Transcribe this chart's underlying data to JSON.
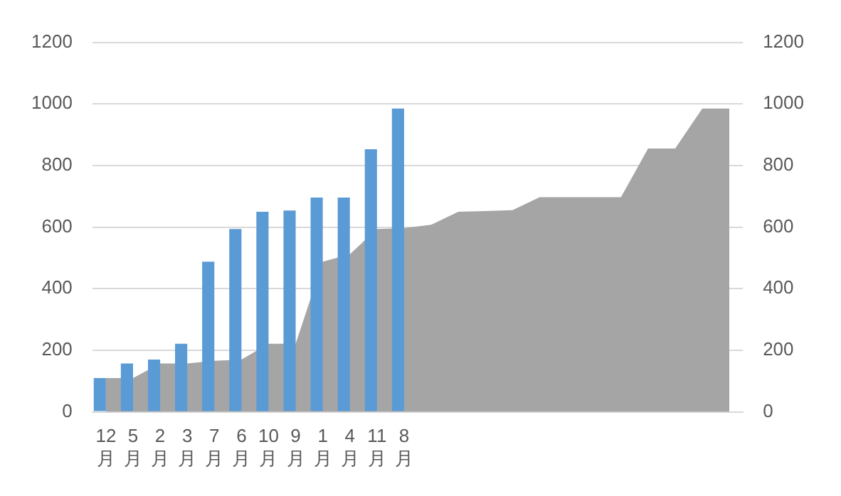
{
  "chart_data": {
    "type": "bar",
    "categories": [
      "12月",
      "5月",
      "2月",
      "3月",
      "7月",
      "6月",
      "10月",
      "9月",
      "1月",
      "4月",
      "11月",
      "8月",
      null,
      null,
      null,
      null,
      null,
      null,
      null,
      null,
      null,
      null,
      null,
      null
    ],
    "series": [
      {
        "color": "#5b9bd5",
        "values": [
          110,
          157,
          170,
          221,
          488,
          594,
          650,
          654,
          696,
          696,
          853,
          985,
          null,
          null,
          null,
          null,
          null,
          null,
          null,
          null,
          null,
          null,
          null,
          null
        ]
      },
      {
        "type": "area",
        "axis": "y2",
        "color": "#a5a5a5",
        "values": [
          110,
          110,
          157,
          157,
          166,
          170,
          221,
          221,
          488,
          512,
          594,
          597,
          608,
          650,
          652,
          655,
          697,
          697,
          697,
          697,
          855,
          855,
          985,
          985
        ]
      }
    ],
    "ylim": [
      0,
      1200
    ],
    "yticks": [
      0,
      200,
      400,
      600,
      800,
      1000,
      1200
    ],
    "y2lim": [
      0,
      1200
    ],
    "y2ticks": [
      0,
      200,
      400,
      600,
      800,
      1000,
      1200
    ],
    "grid": "y",
    "legend": false
  }
}
